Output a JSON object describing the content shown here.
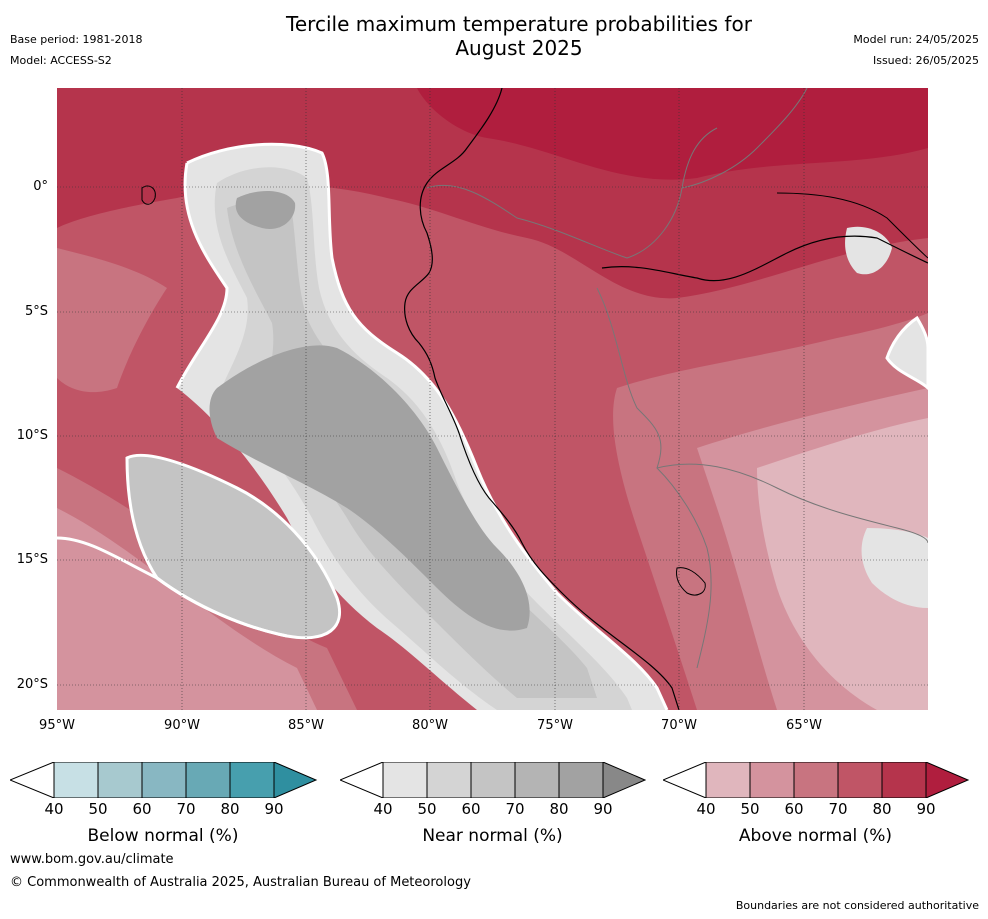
{
  "title_line1": "Tercile maximum temperature probabilities for",
  "title_line2": "August 2025",
  "base_period": "Base period: 1981-2018",
  "model": "Model: ACCESS-S2",
  "model_run": "Model run: 24/05/2025",
  "issued": "Issued: 26/05/2025",
  "lat_labels": [
    "0°",
    "5°S",
    "10°S",
    "15°S",
    "20°S"
  ],
  "lon_labels": [
    "95°W",
    "90°W",
    "85°W",
    "80°W",
    "75°W",
    "70°W",
    "65°W"
  ],
  "colorbars": [
    {
      "title": "Below normal (%)",
      "ticks": [
        "40",
        "50",
        "60",
        "70",
        "80",
        "90"
      ],
      "colors": [
        "#ffffff",
        "#c7e0e5",
        "#a7c9cf",
        "#88b7c2",
        "#68a9b5",
        "#479fae",
        "#2f8fa0"
      ]
    },
    {
      "title": "Near normal (%)",
      "ticks": [
        "40",
        "50",
        "60",
        "70",
        "80",
        "90"
      ],
      "colors": [
        "#ffffff",
        "#e4e4e4",
        "#d4d4d4",
        "#c4c4c4",
        "#b4b4b4",
        "#a2a2a2",
        "#888888"
      ]
    },
    {
      "title": "Above normal (%)",
      "ticks": [
        "40",
        "50",
        "60",
        "70",
        "80",
        "90"
      ],
      "colors": [
        "#ffffff",
        "#e0b6bd",
        "#d4939e",
        "#c87480",
        "#c05566",
        "#b5344c",
        "#b01e3e"
      ]
    }
  ],
  "website": "www.bom.gov.au/climate",
  "copyright": "© Commonwealth of Australia 2025, Australian Bureau of Meteorology",
  "disclaimer": "Boundaries are not considered authoritative"
}
